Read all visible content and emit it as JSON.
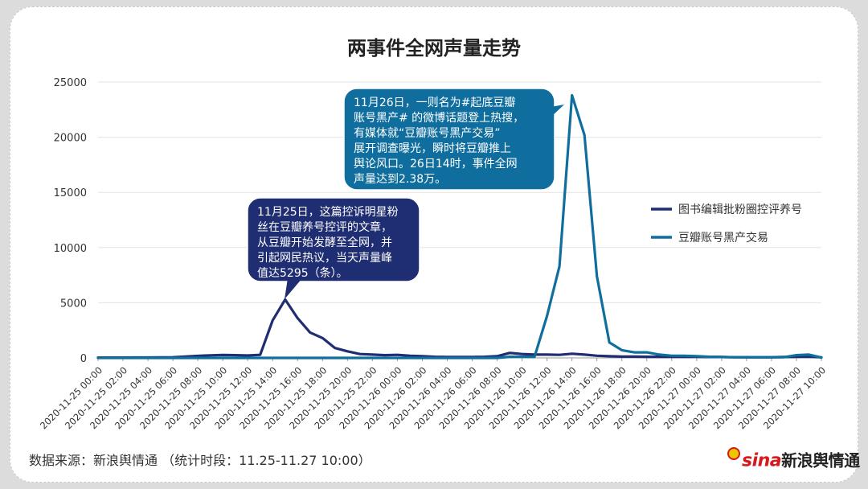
{
  "title": "两事件全网声量走势",
  "source": "数据来源：新浪舆情通 （统计时段：11.25-11.27 10:00）",
  "logo": {
    "brand": "sina",
    "name": "新浪舆情通"
  },
  "colors": {
    "series1": "#1f2d72",
    "series2": "#0f6e9e",
    "grid": "#e3e3e3",
    "axis": "#999999"
  },
  "chart_data": {
    "type": "line",
    "y_ticks": [
      0,
      5000,
      10000,
      15000,
      20000,
      25000
    ],
    "ylim": [
      0,
      25000
    ],
    "x": [
      "2020-11-25 00:00",
      "2020-11-25 01:00",
      "2020-11-25 02:00",
      "2020-11-25 03:00",
      "2020-11-25 04:00",
      "2020-11-25 05:00",
      "2020-11-25 06:00",
      "2020-11-25 07:00",
      "2020-11-25 08:00",
      "2020-11-25 09:00",
      "2020-11-25 10:00",
      "2020-11-25 11:00",
      "2020-11-25 12:00",
      "2020-11-25 13:00",
      "2020-11-25 14:00",
      "2020-11-25 15:00",
      "2020-11-25 16:00",
      "2020-11-25 17:00",
      "2020-11-25 18:00",
      "2020-11-25 19:00",
      "2020-11-25 20:00",
      "2020-11-25 21:00",
      "2020-11-25 22:00",
      "2020-11-25 23:00",
      "2020-11-26 00:00",
      "2020-11-26 01:00",
      "2020-11-26 02:00",
      "2020-11-26 03:00",
      "2020-11-26 04:00",
      "2020-11-26 05:00",
      "2020-11-26 06:00",
      "2020-11-26 07:00",
      "2020-11-26 08:00",
      "2020-11-26 09:00",
      "2020-11-26 10:00",
      "2020-11-26 11:00",
      "2020-11-26 12:00",
      "2020-11-26 13:00",
      "2020-11-26 14:00",
      "2020-11-26 15:00",
      "2020-11-26 16:00",
      "2020-11-26 17:00",
      "2020-11-26 18:00",
      "2020-11-26 19:00",
      "2020-11-26 20:00",
      "2020-11-26 21:00",
      "2020-11-26 22:00",
      "2020-11-26 23:00",
      "2020-11-27 00:00",
      "2020-11-27 01:00",
      "2020-11-27 02:00",
      "2020-11-27 03:00",
      "2020-11-27 04:00",
      "2020-11-27 05:00",
      "2020-11-27 06:00",
      "2020-11-27 07:00",
      "2020-11-27 08:00",
      "2020-11-27 09:00",
      "2020-11-27 10:00"
    ],
    "x_tick_labels": [
      "2020-11-25 00:00",
      "2020-11-25 02:00",
      "2020-11-25 04:00",
      "2020-11-25 06:00",
      "2020-11-25 08:00",
      "2020-11-25 10:00",
      "2020-11-25 12:00",
      "2020-11-25 14:00",
      "2020-11-25 16:00",
      "2020-11-25 18:00",
      "2020-11-25 20:00",
      "2020-11-25 22:00",
      "2020-11-26 00:00",
      "2020-11-26 02:00",
      "2020-11-26 04:00",
      "2020-11-26 06:00",
      "2020-11-26 08:00",
      "2020-11-26 10:00",
      "2020-11-26 12:00",
      "2020-11-26 14:00",
      "2020-11-26 16:00",
      "2020-11-26 18:00",
      "2020-11-26 20:00",
      "2020-11-26 22:00",
      "2020-11-27 00:00",
      "2020-11-27 02:00",
      "2020-11-27 04:00",
      "2020-11-27 06:00",
      "2020-11-27 08:00",
      "2020-11-27 10:00"
    ],
    "series": [
      {
        "name": "图书编辑批粉圈控评养号",
        "color": "#1f2d72",
        "values": [
          30,
          30,
          30,
          40,
          40,
          50,
          60,
          120,
          180,
          230,
          260,
          250,
          220,
          280,
          3400,
          5295,
          3600,
          2300,
          1800,
          900,
          600,
          350,
          300,
          250,
          280,
          200,
          150,
          100,
          80,
          80,
          80,
          100,
          150,
          450,
          350,
          300,
          300,
          280,
          380,
          300,
          200,
          150,
          120,
          120,
          100,
          100,
          100,
          100,
          100,
          80,
          80,
          60,
          60,
          60,
          60,
          80,
          100,
          120,
          50
        ]
      },
      {
        "name": "豆瓣账号黑产交易",
        "color": "#0f6e9e",
        "values": [
          0,
          0,
          0,
          0,
          0,
          0,
          0,
          0,
          0,
          0,
          0,
          0,
          0,
          0,
          0,
          0,
          0,
          0,
          0,
          0,
          0,
          0,
          0,
          0,
          0,
          0,
          0,
          0,
          0,
          0,
          0,
          0,
          0,
          100,
          100,
          100,
          3800,
          8300,
          23800,
          20200,
          7400,
          1400,
          700,
          500,
          500,
          300,
          200,
          200,
          150,
          100,
          80,
          60,
          50,
          50,
          50,
          60,
          250,
          300,
          30
        ]
      }
    ],
    "annotations": [
      {
        "text": "11月25日，这篇控诉明星粉丝在豆瓣养号控评的文章，从豆瓣开始发酵至全网，并引起网民热议，当天声量峰值达5295（条）。",
        "lines": [
          "11月25日，这篇控诉明星粉",
          "丝在豆瓣养号控评的文章，",
          "从豆瓣开始发酵至全网，并",
          "引起网民热议，当天声量峰",
          "值达5295（条）。"
        ]
      },
      {
        "text": "11月26日，一则名为#起底豆瓣账号黑产#的微博话题登上热搜，有媒体就“豆瓣账号黑产交易”展开调查曝光，瞬时将豆瓣推上舆论风口。26日14时，事件全网声量达到2.38万。",
        "lines": [
          "11月26日，一则名为#起底豆瓣",
          "账号黑产# 的微博话题登上热搜，",
          "有媒体就“豆瓣账号黑产交易”",
          "展开调查曝光，瞬时将豆瓣推上",
          "舆论风口。26日14时，事件全网",
          "声量达到2.38万。"
        ]
      }
    ],
    "legend_position": "right"
  }
}
